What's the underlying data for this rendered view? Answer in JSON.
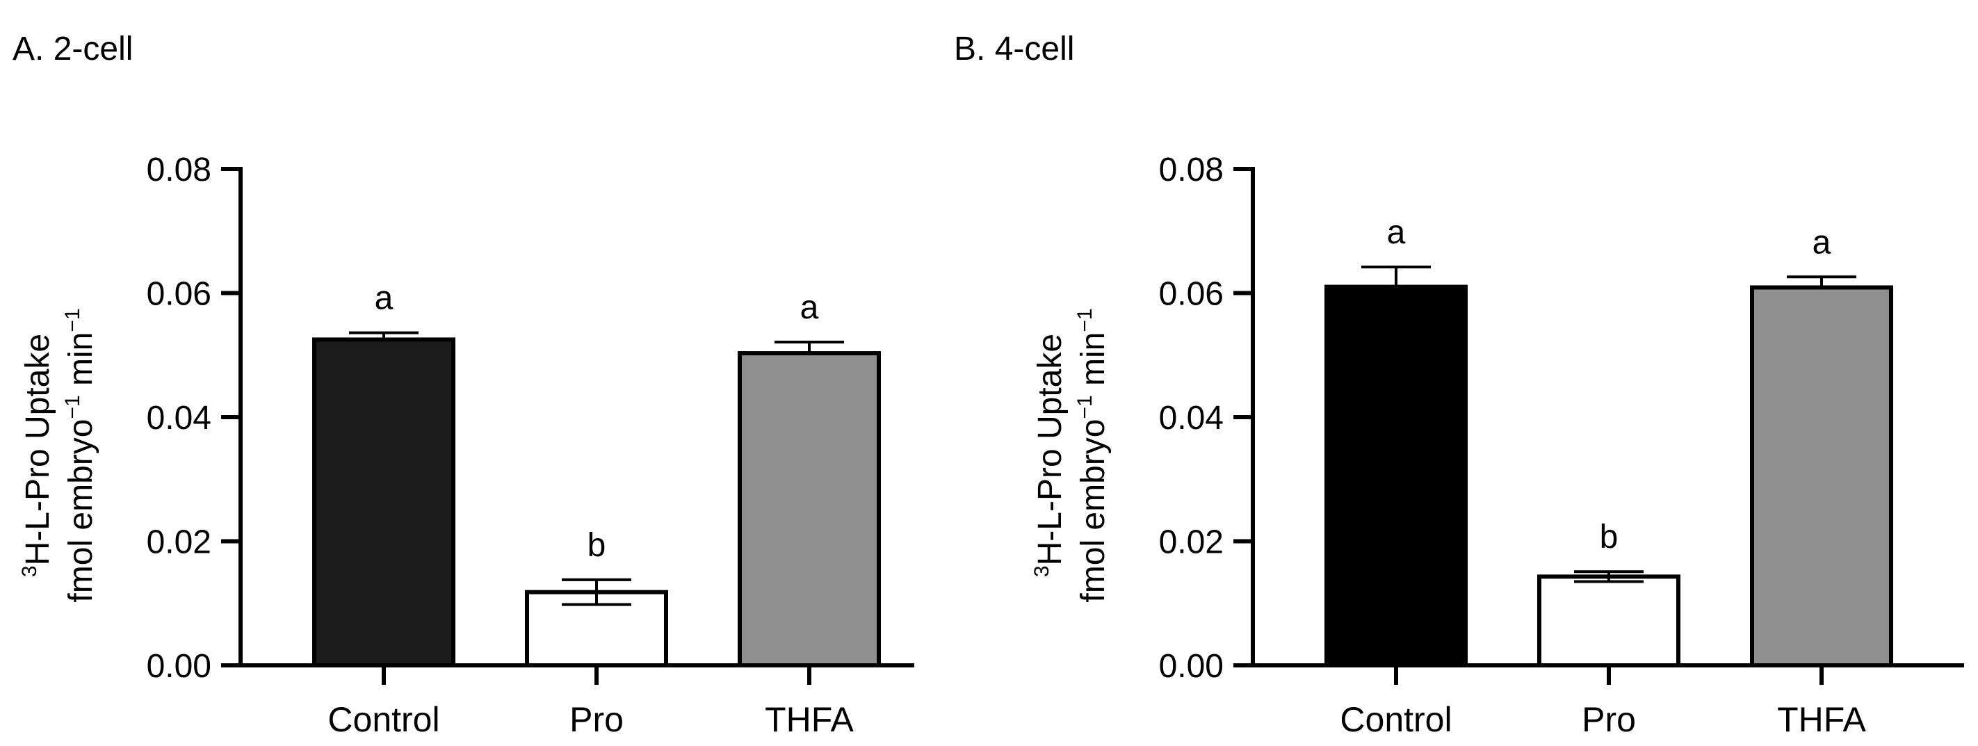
{
  "chart_data": [
    {
      "panel_label": "A. 2-cell",
      "type": "bar",
      "categories": [
        "Control",
        "Pro",
        "THFA"
      ],
      "values": [
        0.0525,
        0.0118,
        0.0503
      ],
      "errors": [
        0.0011,
        0.002,
        0.0018
      ],
      "bar_colors": [
        "#1c1c1c",
        "#ffffff",
        "#8f8f8f"
      ],
      "significance": [
        "a",
        "b",
        "a"
      ],
      "ylabel_sup": "3",
      "ylabel_line1": "H-L-Pro Uptake",
      "ylabel_line2_a": "fmol embryo",
      "ylabel_line2_sup1": "−1",
      "ylabel_line2_b": " min",
      "ylabel_line2_sup2": "−1",
      "yticks": [
        "0.00",
        "0.02",
        "0.04",
        "0.06",
        "0.08"
      ],
      "ylim": [
        0,
        0.08
      ]
    },
    {
      "panel_label": "B. 4-cell",
      "type": "bar",
      "categories": [
        "Control",
        "Pro",
        "THFA"
      ],
      "values": [
        0.061,
        0.0143,
        0.0609
      ],
      "errors": [
        0.0032,
        0.0008,
        0.0017
      ],
      "bar_colors": [
        "#000000",
        "#ffffff",
        "#8f8f8f"
      ],
      "significance": [
        "a",
        "b",
        "a"
      ],
      "ylabel_sup": "3",
      "ylabel_line1": "H-L-Pro Uptake",
      "ylabel_line2_a": "fmol embryo",
      "ylabel_line2_sup1": "−1",
      "ylabel_line2_b": " min",
      "ylabel_line2_sup2": "−1",
      "yticks": [
        "0.00",
        "0.02",
        "0.04",
        "0.06",
        "0.08"
      ],
      "ylim": [
        0,
        0.08
      ]
    }
  ]
}
